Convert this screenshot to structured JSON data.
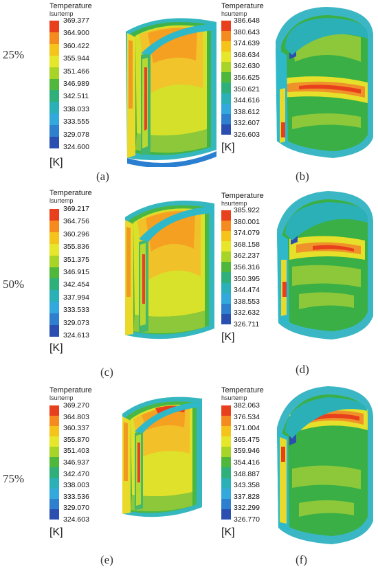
{
  "rows": [
    "25%",
    "50%",
    "75%"
  ],
  "panels": [
    {
      "caption": "(a)",
      "legend_title": "Temperature",
      "legend_subtitle": "lsurtemp",
      "unit": "[K]",
      "ticks": [
        "369.377",
        "364.900",
        "360.422",
        "355.944",
        "351.466",
        "346.989",
        "342.511",
        "338.033",
        "333.555",
        "329.078",
        "324.600"
      ]
    },
    {
      "caption": "(b)",
      "legend_title": "Temperature",
      "legend_subtitle": "hsurtemp",
      "unit": "[K]",
      "ticks": [
        "386.648",
        "380.643",
        "374.639",
        "368.634",
        "362.630",
        "356.625",
        "350.621",
        "344.616",
        "338.612",
        "332.607",
        "326.603"
      ]
    },
    {
      "caption": "(c)",
      "legend_title": "Temperature",
      "legend_subtitle": "lsurtemp",
      "unit": "[K]",
      "ticks": [
        "369.217",
        "364.756",
        "360.296",
        "355.836",
        "351.375",
        "346.915",
        "342.454",
        "337.994",
        "333.533",
        "329.073",
        "324.613"
      ]
    },
    {
      "caption": "(d)",
      "legend_title": "Temperature",
      "legend_subtitle": "hsurtemp",
      "unit": "[K]",
      "ticks": [
        "385.922",
        "380.001",
        "374.079",
        "368.158",
        "362.237",
        "356.316",
        "350.395",
        "344.474",
        "338.553",
        "332.632",
        "326.711"
      ]
    },
    {
      "caption": "(e)",
      "legend_title": "Temperature",
      "legend_subtitle": "lsurtemp",
      "unit": "[K]",
      "ticks": [
        "369.270",
        "364.803",
        "360.337",
        "355.870",
        "351.403",
        "346.937",
        "342.470",
        "338.003",
        "333.536",
        "329.070",
        "324.603"
      ]
    },
    {
      "caption": "(f)",
      "legend_title": "Temperature",
      "legend_subtitle": "hsurtemp",
      "unit": "[K]",
      "ticks": [
        "382.063",
        "376.534",
        "371.004",
        "365.475",
        "359.946",
        "354.416",
        "348.887",
        "343.358",
        "337.828",
        "332.299",
        "326.770"
      ]
    }
  ],
  "colormap": [
    "#e8401c",
    "#f58a1e",
    "#f5c41a",
    "#e6e62a",
    "#a8d428",
    "#4fb83c",
    "#2fb07a",
    "#2bb0b8",
    "#33a8dc",
    "#2f7fcf",
    "#2a4fb0"
  ]
}
